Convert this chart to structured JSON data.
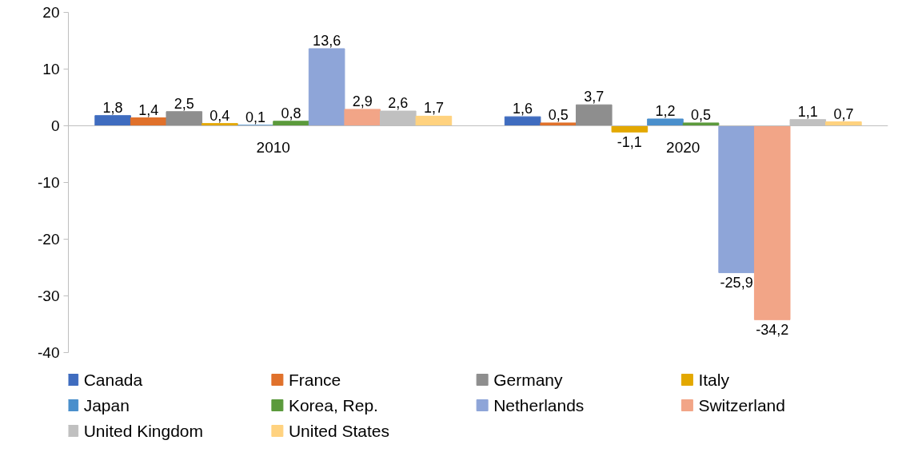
{
  "chart_data": {
    "type": "bar",
    "categories": [
      "2010",
      "2020"
    ],
    "series": [
      {
        "name": "Canada",
        "color": "#3f6cbf",
        "values": [
          1.8,
          1.6
        ],
        "value_labels": [
          "1,8",
          "1,6"
        ]
      },
      {
        "name": "France",
        "color": "#e0712b",
        "values": [
          1.4,
          0.5
        ],
        "value_labels": [
          "1,4",
          "0,5"
        ]
      },
      {
        "name": "Germany",
        "color": "#8e8e8e",
        "values": [
          2.5,
          3.7
        ],
        "value_labels": [
          "2,5",
          "3,7"
        ]
      },
      {
        "name": "Italy",
        "color": "#e3a800",
        "values": [
          0.4,
          -1.1
        ],
        "value_labels": [
          "0,4",
          "-1,1"
        ]
      },
      {
        "name": "Japan",
        "color": "#4a8fcc",
        "values": [
          0.1,
          1.2
        ],
        "value_labels": [
          "0,1",
          "1,2"
        ]
      },
      {
        "name": "Korea, Rep.",
        "color": "#5b9a3c",
        "values": [
          0.8,
          0.5
        ],
        "value_labels": [
          "0,8",
          "0,5"
        ]
      },
      {
        "name": "Netherlands",
        "color": "#8ea5d8",
        "values": [
          13.6,
          -25.9
        ],
        "value_labels": [
          "13,6",
          "-25,9"
        ]
      },
      {
        "name": "Switzerland",
        "color": "#f2a587",
        "values": [
          2.9,
          -34.2
        ],
        "value_labels": [
          "2,9",
          "-34,2"
        ]
      },
      {
        "name": "United Kingdom",
        "color": "#c0c0c0",
        "values": [
          2.6,
          1.1
        ],
        "value_labels": [
          "2,6",
          "1,1"
        ]
      },
      {
        "name": "United States",
        "color": "#ffd27f",
        "values": [
          1.7,
          0.7
        ],
        "value_labels": [
          "1,7",
          "0,7"
        ]
      }
    ],
    "ylim": [
      -40,
      20
    ],
    "yticks": [
      -40,
      -30,
      -20,
      -10,
      0,
      10,
      20
    ],
    "grid": false,
    "legend": "bottom"
  }
}
